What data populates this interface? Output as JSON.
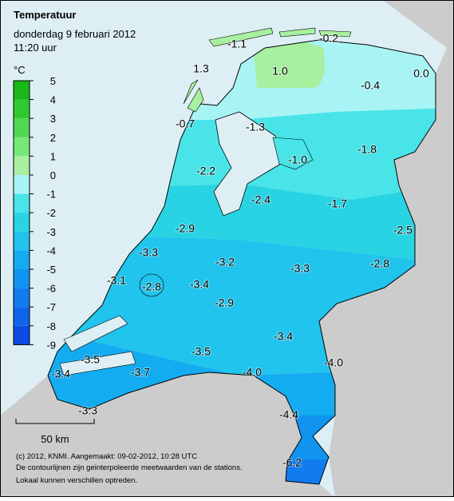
{
  "header": {
    "title": "Temperatuur",
    "date": "donderdag 9 februari 2012",
    "time": "11:20 uur"
  },
  "legend": {
    "unit": "°C",
    "ticks": [
      5,
      4,
      3,
      2,
      1,
      0,
      -1,
      -2,
      -3,
      -4,
      -5,
      -6,
      -7,
      -8,
      -9
    ],
    "colors": [
      "#18b818",
      "#30c830",
      "#50d850",
      "#78e878",
      "#a8f0a0",
      "#a8f4f4",
      "#48e4e8",
      "#28d4e4",
      "#20c4ec",
      "#14acf0",
      "#1094f0",
      "#107cf0",
      "#1064ec",
      "#0c4ce4"
    ]
  },
  "stations": [
    "-1.1",
    "-0.2",
    "1.3",
    "1.0",
    "0.0",
    "-0.4",
    "-0.7",
    "-1.3",
    "-1.0",
    "-1.8",
    "-2.2",
    "-2.4",
    "-1.7",
    "-2.5",
    "-2.9",
    "-3.3",
    "-3.2",
    "-3.3",
    "-2.8",
    "-3.1",
    "-2.8",
    "-3.4",
    "-2.9",
    "-3.4",
    "-3.5",
    "-3.5",
    "-4.0",
    "-4.0",
    "-3.4",
    "-3.7",
    "-4.4",
    "-3.3",
    "-6.2"
  ],
  "scale": "50 km",
  "footer": [
    "(c) 2012, KNMI. Aangemaakt: 09-02-2012, 10:28 UTC",
    "De contourlijnen zijn geinterpoleerde meetwaarden van de stations.",
    "Lokaal kunnen verschillen optreden."
  ]
}
